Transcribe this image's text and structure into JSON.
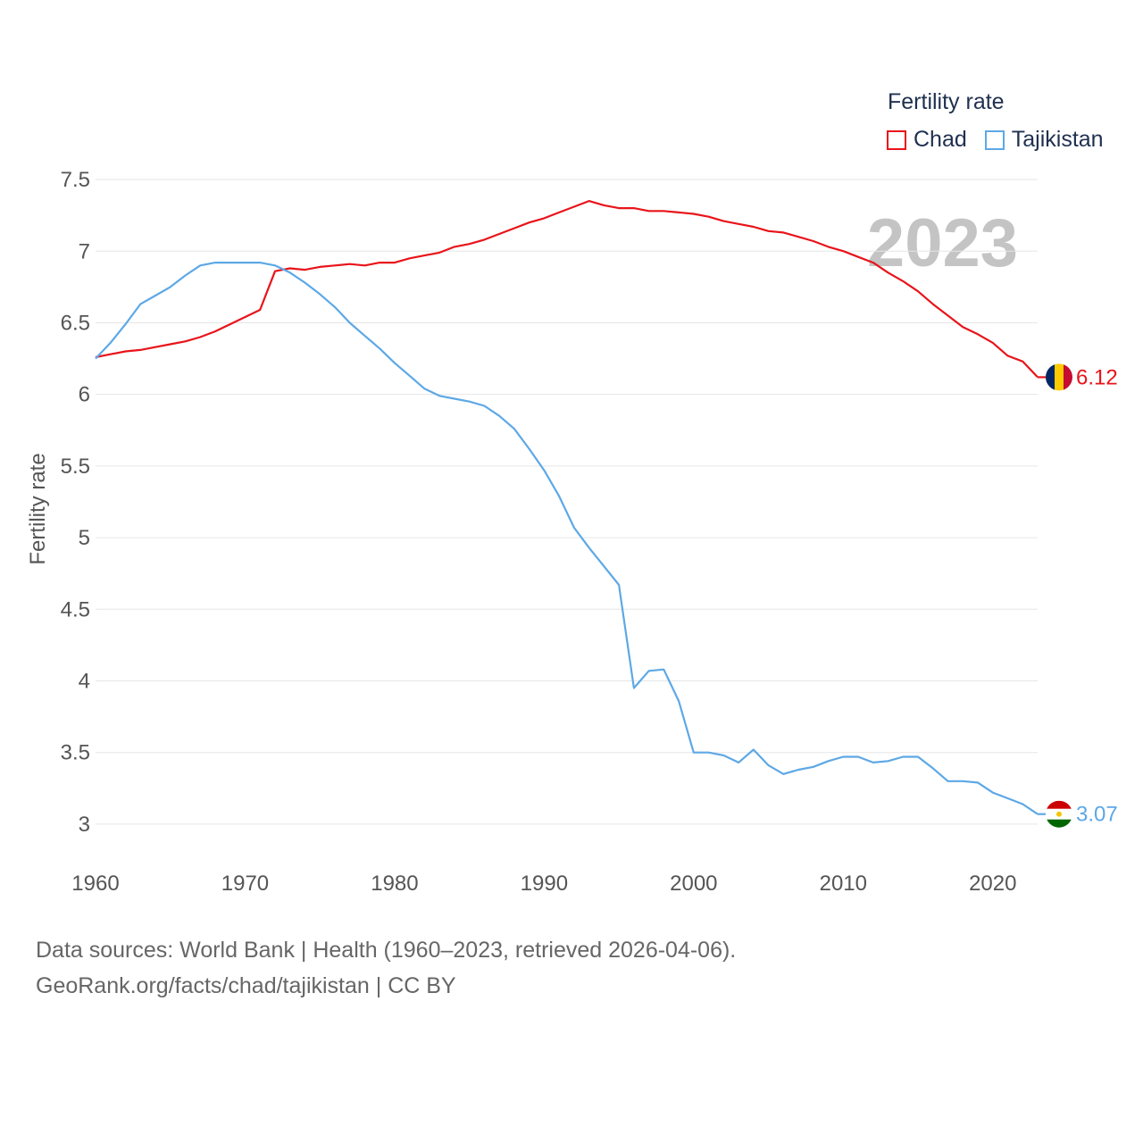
{
  "legend": {
    "title": "Fertility rate",
    "items": [
      {
        "label": "Chad",
        "color": "#e8141a"
      },
      {
        "label": "Tajikistan",
        "color": "#5da8e6"
      }
    ]
  },
  "source": {
    "line1": "Data sources: World Bank | Health (1960–2023, retrieved 2026-04-06).",
    "line2": "GeoRank.org/facts/chad/tajikistan | CC BY"
  },
  "chart_data": {
    "type": "line",
    "title": "Fertility rate",
    "ylabel": "Fertility rate",
    "xlabel": "",
    "year_label": "2023",
    "xlim": [
      1960,
      2023
    ],
    "ylim": [
      2.8,
      7.6
    ],
    "xticks": [
      "1960",
      "1970",
      "1980",
      "1990",
      "2000",
      "2010",
      "2020"
    ],
    "yticks": [
      "3",
      "3.5",
      "4",
      "4.5",
      "5",
      "5.5",
      "6",
      "6.5",
      "7",
      "7.5"
    ],
    "grid": true,
    "x": [
      1960,
      1961,
      1962,
      1963,
      1964,
      1965,
      1966,
      1967,
      1968,
      1969,
      1970,
      1971,
      1972,
      1973,
      1974,
      1975,
      1976,
      1977,
      1978,
      1979,
      1980,
      1981,
      1982,
      1983,
      1984,
      1985,
      1986,
      1987,
      1988,
      1989,
      1990,
      1991,
      1992,
      1993,
      1994,
      1995,
      1996,
      1997,
      1998,
      1999,
      2000,
      2001,
      2002,
      2003,
      2004,
      2005,
      2006,
      2007,
      2008,
      2009,
      2010,
      2011,
      2012,
      2013,
      2014,
      2015,
      2016,
      2017,
      2018,
      2019,
      2020,
      2021,
      2022,
      2023
    ],
    "series": [
      {
        "name": "Chad",
        "color": "#e8141a",
        "end_label": "6.12",
        "flag": [
          "#002664",
          "#fecb00",
          "#c60c30"
        ],
        "values": [
          6.26,
          6.28,
          6.3,
          6.31,
          6.33,
          6.35,
          6.37,
          6.4,
          6.44,
          6.49,
          6.54,
          6.59,
          6.86,
          6.88,
          6.87,
          6.89,
          6.9,
          6.91,
          6.9,
          6.92,
          6.92,
          6.95,
          6.97,
          6.99,
          7.03,
          7.05,
          7.08,
          7.12,
          7.16,
          7.2,
          7.23,
          7.27,
          7.31,
          7.35,
          7.32,
          7.3,
          7.3,
          7.28,
          7.28,
          7.27,
          7.26,
          7.24,
          7.21,
          7.19,
          7.17,
          7.14,
          7.13,
          7.1,
          7.07,
          7.03,
          7.0,
          6.96,
          6.92,
          6.85,
          6.79,
          6.72,
          6.63,
          6.55,
          6.47,
          6.42,
          6.36,
          6.27,
          6.23,
          6.12
        ]
      },
      {
        "name": "Tajikistan",
        "color": "#5da8e6",
        "end_label": "3.07",
        "flag": [
          "#cc0000",
          "#ffffff",
          "#006600"
        ],
        "values": [
          6.25,
          6.36,
          6.49,
          6.63,
          6.69,
          6.75,
          6.83,
          6.9,
          6.92,
          6.92,
          6.92,
          6.92,
          6.9,
          6.85,
          6.78,
          6.7,
          6.61,
          6.5,
          6.41,
          6.32,
          6.22,
          6.13,
          6.04,
          5.99,
          5.97,
          5.95,
          5.92,
          5.85,
          5.76,
          5.62,
          5.47,
          5.29,
          5.07,
          4.93,
          4.8,
          4.67,
          3.95,
          4.07,
          4.08,
          3.86,
          3.5,
          3.5,
          3.48,
          3.43,
          3.52,
          3.41,
          3.35,
          3.38,
          3.4,
          3.44,
          3.47,
          3.47,
          3.43,
          3.44,
          3.47,
          3.47,
          3.39,
          3.3,
          3.3,
          3.29,
          3.22,
          3.18,
          3.14,
          3.07
        ]
      }
    ]
  }
}
